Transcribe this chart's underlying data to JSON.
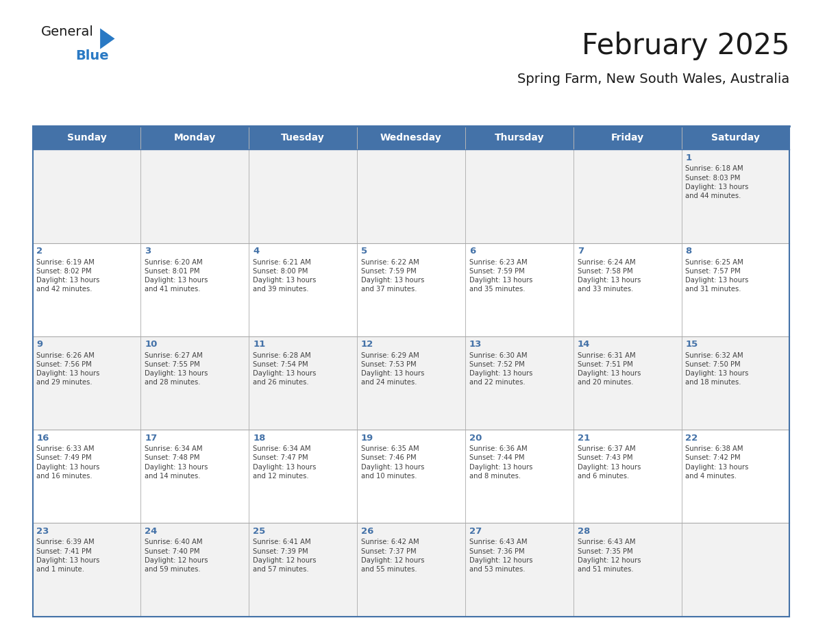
{
  "title": "February 2025",
  "subtitle": "Spring Farm, New South Wales, Australia",
  "days_of_week": [
    "Sunday",
    "Monday",
    "Tuesday",
    "Wednesday",
    "Thursday",
    "Friday",
    "Saturday"
  ],
  "header_bg": "#4472a8",
  "header_text": "#ffffff",
  "row_bg_light": "#f2f2f2",
  "row_bg_white": "#ffffff",
  "border_color": "#4472a8",
  "day_number_color": "#4472a8",
  "info_text_color": "#404040",
  "title_color": "#1a1a1a",
  "subtitle_color": "#1a1a1a",
  "logo_general_color": "#1a1a1a",
  "logo_blue_color": "#2979c4",
  "calendar_data": [
    [
      {
        "day": null,
        "info": null
      },
      {
        "day": null,
        "info": null
      },
      {
        "day": null,
        "info": null
      },
      {
        "day": null,
        "info": null
      },
      {
        "day": null,
        "info": null
      },
      {
        "day": null,
        "info": null
      },
      {
        "day": 1,
        "info": "Sunrise: 6:18 AM\nSunset: 8:03 PM\nDaylight: 13 hours\nand 44 minutes."
      }
    ],
    [
      {
        "day": 2,
        "info": "Sunrise: 6:19 AM\nSunset: 8:02 PM\nDaylight: 13 hours\nand 42 minutes."
      },
      {
        "day": 3,
        "info": "Sunrise: 6:20 AM\nSunset: 8:01 PM\nDaylight: 13 hours\nand 41 minutes."
      },
      {
        "day": 4,
        "info": "Sunrise: 6:21 AM\nSunset: 8:00 PM\nDaylight: 13 hours\nand 39 minutes."
      },
      {
        "day": 5,
        "info": "Sunrise: 6:22 AM\nSunset: 7:59 PM\nDaylight: 13 hours\nand 37 minutes."
      },
      {
        "day": 6,
        "info": "Sunrise: 6:23 AM\nSunset: 7:59 PM\nDaylight: 13 hours\nand 35 minutes."
      },
      {
        "day": 7,
        "info": "Sunrise: 6:24 AM\nSunset: 7:58 PM\nDaylight: 13 hours\nand 33 minutes."
      },
      {
        "day": 8,
        "info": "Sunrise: 6:25 AM\nSunset: 7:57 PM\nDaylight: 13 hours\nand 31 minutes."
      }
    ],
    [
      {
        "day": 9,
        "info": "Sunrise: 6:26 AM\nSunset: 7:56 PM\nDaylight: 13 hours\nand 29 minutes."
      },
      {
        "day": 10,
        "info": "Sunrise: 6:27 AM\nSunset: 7:55 PM\nDaylight: 13 hours\nand 28 minutes."
      },
      {
        "day": 11,
        "info": "Sunrise: 6:28 AM\nSunset: 7:54 PM\nDaylight: 13 hours\nand 26 minutes."
      },
      {
        "day": 12,
        "info": "Sunrise: 6:29 AM\nSunset: 7:53 PM\nDaylight: 13 hours\nand 24 minutes."
      },
      {
        "day": 13,
        "info": "Sunrise: 6:30 AM\nSunset: 7:52 PM\nDaylight: 13 hours\nand 22 minutes."
      },
      {
        "day": 14,
        "info": "Sunrise: 6:31 AM\nSunset: 7:51 PM\nDaylight: 13 hours\nand 20 minutes."
      },
      {
        "day": 15,
        "info": "Sunrise: 6:32 AM\nSunset: 7:50 PM\nDaylight: 13 hours\nand 18 minutes."
      }
    ],
    [
      {
        "day": 16,
        "info": "Sunrise: 6:33 AM\nSunset: 7:49 PM\nDaylight: 13 hours\nand 16 minutes."
      },
      {
        "day": 17,
        "info": "Sunrise: 6:34 AM\nSunset: 7:48 PM\nDaylight: 13 hours\nand 14 minutes."
      },
      {
        "day": 18,
        "info": "Sunrise: 6:34 AM\nSunset: 7:47 PM\nDaylight: 13 hours\nand 12 minutes."
      },
      {
        "day": 19,
        "info": "Sunrise: 6:35 AM\nSunset: 7:46 PM\nDaylight: 13 hours\nand 10 minutes."
      },
      {
        "day": 20,
        "info": "Sunrise: 6:36 AM\nSunset: 7:44 PM\nDaylight: 13 hours\nand 8 minutes."
      },
      {
        "day": 21,
        "info": "Sunrise: 6:37 AM\nSunset: 7:43 PM\nDaylight: 13 hours\nand 6 minutes."
      },
      {
        "day": 22,
        "info": "Sunrise: 6:38 AM\nSunset: 7:42 PM\nDaylight: 13 hours\nand 4 minutes."
      }
    ],
    [
      {
        "day": 23,
        "info": "Sunrise: 6:39 AM\nSunset: 7:41 PM\nDaylight: 13 hours\nand 1 minute."
      },
      {
        "day": 24,
        "info": "Sunrise: 6:40 AM\nSunset: 7:40 PM\nDaylight: 12 hours\nand 59 minutes."
      },
      {
        "day": 25,
        "info": "Sunrise: 6:41 AM\nSunset: 7:39 PM\nDaylight: 12 hours\nand 57 minutes."
      },
      {
        "day": 26,
        "info": "Sunrise: 6:42 AM\nSunset: 7:37 PM\nDaylight: 12 hours\nand 55 minutes."
      },
      {
        "day": 27,
        "info": "Sunrise: 6:43 AM\nSunset: 7:36 PM\nDaylight: 12 hours\nand 53 minutes."
      },
      {
        "day": 28,
        "info": "Sunrise: 6:43 AM\nSunset: 7:35 PM\nDaylight: 12 hours\nand 51 minutes."
      },
      {
        "day": null,
        "info": null
      }
    ]
  ]
}
